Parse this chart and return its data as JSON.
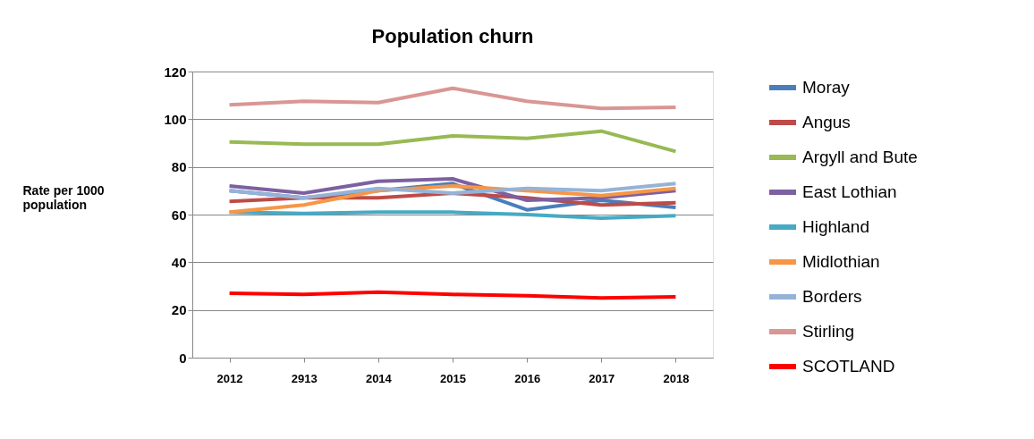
{
  "chart_data": {
    "type": "line",
    "title": "Population churn",
    "ylabel": "Rate per 1000 population",
    "categories": [
      "2012",
      "2913",
      "2014",
      "2015",
      "2016",
      "2017",
      "2018"
    ],
    "ylim": [
      0,
      120
    ],
    "yticks": [
      0,
      20,
      40,
      60,
      80,
      100,
      120
    ],
    "grid": "y",
    "legend": "right",
    "marker": "none",
    "line_style": "solid",
    "series": [
      {
        "name": "Moray",
        "color": "#4a7ebb",
        "values": [
          70,
          67,
          70,
          73,
          62,
          66,
          63
        ]
      },
      {
        "name": "Angus",
        "color": "#be4b48",
        "values": [
          65.5,
          67,
          67,
          69,
          67,
          64,
          65
        ]
      },
      {
        "name": "Argyll and Bute",
        "color": "#98b954",
        "values": [
          90.5,
          89.5,
          89.5,
          93,
          92,
          95,
          86.5
        ]
      },
      {
        "name": "East Lothian",
        "color": "#7d60a0",
        "values": [
          72,
          69,
          74,
          75,
          66,
          67,
          70
        ]
      },
      {
        "name": "Highland",
        "color": "#46aac5",
        "values": [
          61,
          60.5,
          61,
          61,
          60,
          58.5,
          59.5
        ]
      },
      {
        "name": "Midlothian",
        "color": "#f79646",
        "values": [
          61,
          64,
          70,
          72,
          70,
          68,
          71
        ]
      },
      {
        "name": "Borders",
        "color": "#95b3d7",
        "values": [
          70,
          67,
          71,
          69,
          71,
          70,
          73
        ]
      },
      {
        "name": "Stirling",
        "color": "#d99694",
        "values": [
          106,
          107.5,
          107,
          113,
          107.5,
          104.5,
          105
        ]
      },
      {
        "name": "SCOTLAND",
        "color": "#ff0000",
        "values": [
          27,
          26.5,
          27.5,
          26.5,
          26,
          25,
          25.5
        ]
      }
    ]
  }
}
